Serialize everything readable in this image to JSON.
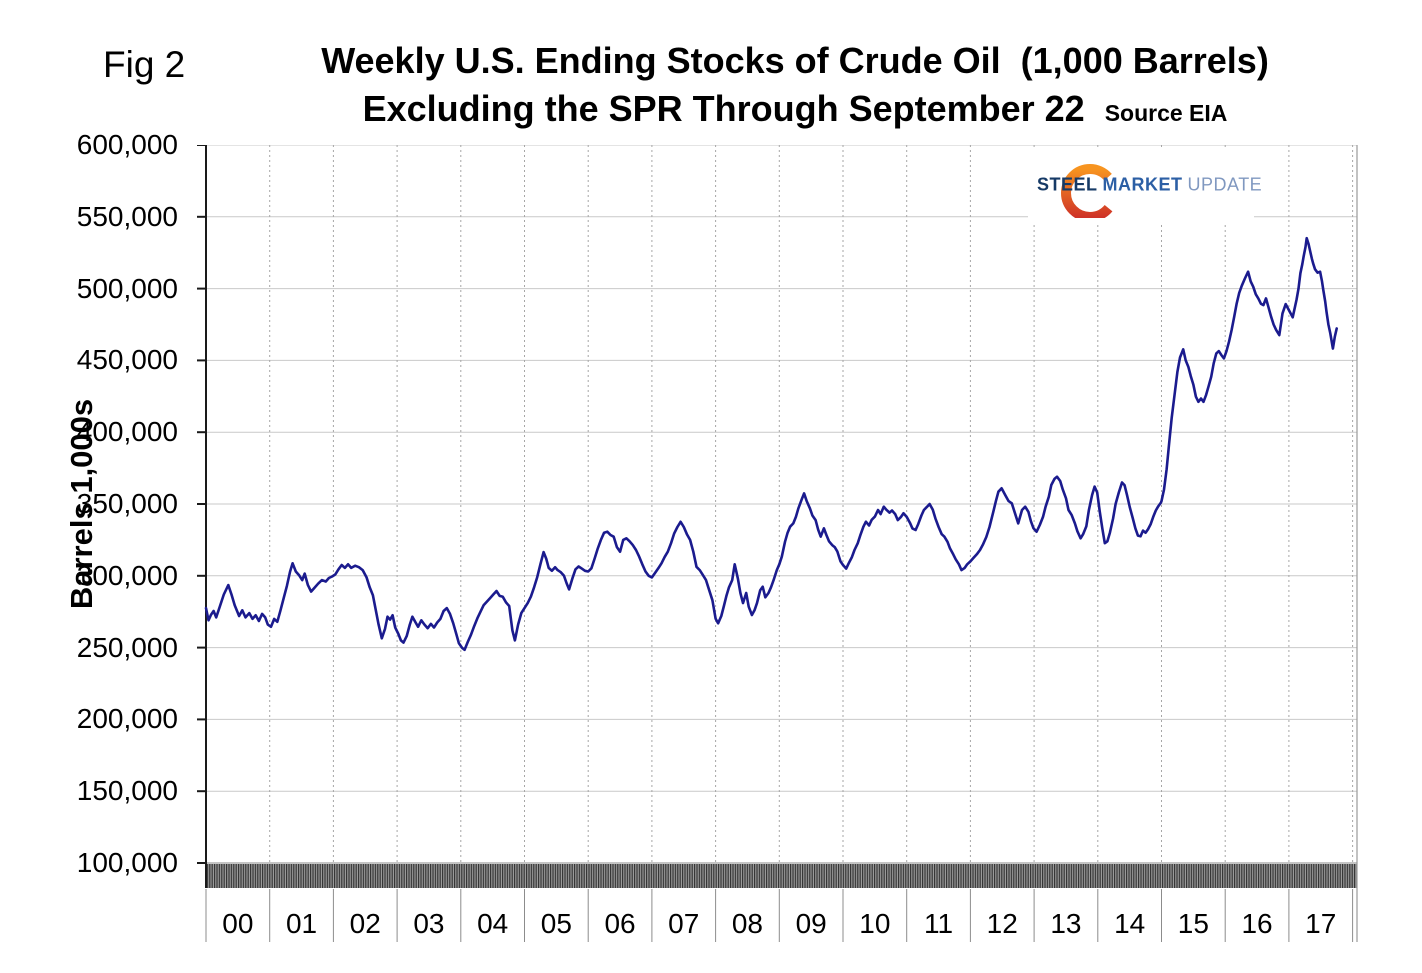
{
  "figure_label": "Fig 2",
  "title": {
    "line1": "Weekly U.S. Ending Stocks of Crude Oil  (1,000 Barrels)",
    "line2": "Excluding the SPR Through September 22",
    "source": "Source EIA"
  },
  "logo": {
    "steel": "STEEL",
    "market": "MARKET",
    "update": "UPDATE",
    "steel_color": "#163a66",
    "market_color": "#2c5fa5",
    "update_color": "#8098c0",
    "crescent_top_color": "#f79420",
    "crescent_bottom_color": "#cf3327"
  },
  "y_axis": {
    "title": "Barrels 1,000s",
    "min": 100000,
    "max": 600000,
    "step": 50000,
    "tick_labels": [
      "600,000",
      "550,000",
      "500,000",
      "450,000",
      "400,000",
      "350,000",
      "300,000",
      "250,000",
      "200,000",
      "150,000",
      "100,000"
    ]
  },
  "x_axis": {
    "year_labels": [
      "00",
      "01",
      "02",
      "03",
      "04",
      "05",
      "06",
      "07",
      "08",
      "09",
      "10",
      "11",
      "12",
      "13",
      "14",
      "15",
      "16",
      "17"
    ]
  },
  "chart_data": {
    "type": "line",
    "series_name": "Weekly U.S. ending stocks of crude oil excluding the SPR (1,000 barrels)",
    "line_color": "#1b1b8e",
    "x_unit": "decimal year (2000.0 = Jan 2000; data ends Sep 22, 2017)",
    "x_range": [
      2000,
      2018
    ],
    "ylim": [
      100000,
      600000
    ],
    "grid": {
      "horizontal": "solid light gray every 50,000",
      "vertical": "dotted light gray at each year boundary"
    },
    "axis_bottom_band": "dense weekly tick hatching between 100,000 line and year labels",
    "x": [
      2000.0,
      2000.04,
      2000.08,
      2000.12,
      2000.16,
      2000.22,
      2000.28,
      2000.35,
      2000.4,
      2000.45,
      2000.52,
      2000.57,
      2000.62,
      2000.68,
      2000.73,
      2000.78,
      2000.83,
      2000.88,
      2000.93,
      2000.97,
      2001.02,
      2001.07,
      2001.12,
      2001.17,
      2001.22,
      2001.27,
      2001.32,
      2001.36,
      2001.41,
      2001.46,
      2001.51,
      2001.55,
      2001.6,
      2001.65,
      2001.7,
      2001.76,
      2001.82,
      2001.88,
      2001.93,
      2001.98,
      2002.03,
      2002.08,
      2002.13,
      2002.18,
      2002.23,
      2002.28,
      2002.34,
      2002.4,
      2002.46,
      2002.52,
      2002.57,
      2002.62,
      2002.66,
      2002.71,
      2002.76,
      2002.81,
      2002.85,
      2002.89,
      2002.93,
      2002.97,
      2003.02,
      2003.06,
      2003.1,
      2003.15,
      2003.2,
      2003.24,
      2003.29,
      2003.33,
      2003.38,
      2003.43,
      2003.48,
      2003.53,
      2003.58,
      2003.63,
      2003.68,
      2003.73,
      2003.78,
      2003.83,
      2003.88,
      2003.93,
      2003.97,
      2004.02,
      2004.06,
      2004.11,
      2004.16,
      2004.21,
      2004.26,
      2004.31,
      2004.36,
      2004.41,
      2004.46,
      2004.51,
      2004.56,
      2004.61,
      2004.66,
      2004.71,
      2004.76,
      2004.81,
      2004.85,
      2004.9,
      2004.95,
      2005.0,
      2005.05,
      2005.1,
      2005.15,
      2005.2,
      2005.25,
      2005.3,
      2005.34,
      2005.38,
      2005.43,
      2005.48,
      2005.52,
      2005.57,
      2005.62,
      2005.66,
      2005.7,
      2005.75,
      2005.8,
      2005.85,
      2005.9,
      2005.95,
      2006.0,
      2006.05,
      2006.1,
      2006.15,
      2006.2,
      2006.25,
      2006.3,
      2006.35,
      2006.4,
      2006.45,
      2006.5,
      2006.55,
      2006.6,
      2006.65,
      2006.7,
      2006.75,
      2006.8,
      2006.85,
      2006.9,
      2006.95,
      2007.0,
      2007.05,
      2007.1,
      2007.15,
      2007.2,
      2007.25,
      2007.3,
      2007.35,
      2007.4,
      2007.45,
      2007.5,
      2007.55,
      2007.6,
      2007.65,
      2007.7,
      2007.75,
      2007.8,
      2007.85,
      2007.9,
      2007.95,
      2008.0,
      2008.04,
      2008.09,
      2008.13,
      2008.17,
      2008.21,
      2008.26,
      2008.3,
      2008.35,
      2008.39,
      2008.43,
      2008.48,
      2008.52,
      2008.57,
      2008.61,
      2008.65,
      2008.7,
      2008.74,
      2008.78,
      2008.83,
      2008.87,
      2008.91,
      2008.96,
      2009.0,
      2009.04,
      2009.09,
      2009.13,
      2009.17,
      2009.22,
      2009.26,
      2009.3,
      2009.35,
      2009.39,
      2009.43,
      2009.48,
      2009.52,
      2009.57,
      2009.61,
      2009.65,
      2009.7,
      2009.74,
      2009.78,
      2009.83,
      2009.87,
      2009.91,
      2009.96,
      2010.0,
      2010.05,
      2010.09,
      2010.14,
      2010.18,
      2010.23,
      2010.27,
      2010.32,
      2010.36,
      2010.41,
      2010.45,
      2010.5,
      2010.55,
      2010.59,
      2010.64,
      2010.68,
      2010.73,
      2010.77,
      2010.82,
      2010.86,
      2010.91,
      2010.95,
      2011.0,
      2011.05,
      2011.09,
      2011.14,
      2011.18,
      2011.23,
      2011.27,
      2011.32,
      2011.36,
      2011.41,
      2011.45,
      2011.5,
      2011.55,
      2011.59,
      2011.64,
      2011.68,
      2011.73,
      2011.77,
      2011.82,
      2011.86,
      2011.91,
      2011.95,
      2012.0,
      2012.05,
      2012.1,
      2012.15,
      2012.2,
      2012.25,
      2012.3,
      2012.36,
      2012.4,
      2012.44,
      2012.49,
      2012.55,
      2012.6,
      2012.65,
      2012.7,
      2012.75,
      2012.81,
      2012.86,
      2012.91,
      2012.95,
      2012.99,
      2013.04,
      2013.09,
      2013.14,
      2013.18,
      2013.23,
      2013.27,
      2013.32,
      2013.36,
      2013.41,
      2013.45,
      2013.5,
      2013.54,
      2013.59,
      2013.64,
      2013.68,
      2013.73,
      2013.77,
      2013.82,
      2013.86,
      2013.91,
      2013.95,
      2013.99,
      2014.03,
      2014.07,
      2014.11,
      2014.15,
      2014.19,
      2014.24,
      2014.28,
      2014.33,
      2014.38,
      2014.42,
      2014.46,
      2014.5,
      2014.55,
      2014.59,
      2014.63,
      2014.67,
      2014.71,
      2014.75,
      2014.79,
      2014.83,
      2014.87,
      2014.91,
      2014.95,
      2014.99,
      2015.0,
      2015.04,
      2015.08,
      2015.12,
      2015.16,
      2015.21,
      2015.25,
      2015.29,
      2015.34,
      2015.38,
      2015.42,
      2015.46,
      2015.5,
      2015.54,
      2015.58,
      2015.62,
      2015.66,
      2015.7,
      2015.74,
      2015.78,
      2015.82,
      2015.86,
      2015.9,
      2015.94,
      2015.98,
      2016.02,
      2016.06,
      2016.1,
      2016.14,
      2016.18,
      2016.22,
      2016.26,
      2016.31,
      2016.36,
      2016.4,
      2016.44,
      2016.48,
      2016.52,
      2016.56,
      2016.6,
      2016.64,
      2016.68,
      2016.72,
      2016.76,
      2016.8,
      2016.85,
      2016.9,
      2016.95,
      2017.0,
      2017.06,
      2017.12,
      2017.15,
      2017.18,
      2017.21,
      2017.23,
      2017.26,
      2017.28,
      2017.31,
      2017.33,
      2017.36,
      2017.38,
      2017.41,
      2017.45,
      2017.49,
      2017.52,
      2017.54,
      2017.57,
      2017.59,
      2017.62,
      2017.65,
      2017.69,
      2017.72,
      2017.75
    ],
    "values": [
      277500,
      269000,
      273000,
      275500,
      271000,
      279000,
      287000,
      293500,
      287000,
      279500,
      272000,
      276000,
      271000,
      274000,
      270000,
      272500,
      268500,
      273500,
      271000,
      266000,
      264500,
      270000,
      268000,
      276000,
      284500,
      293000,
      303000,
      308700,
      303000,
      300500,
      297000,
      301500,
      293500,
      289000,
      291500,
      294500,
      297000,
      296000,
      298500,
      299500,
      301000,
      304500,
      307500,
      305500,
      308000,
      305500,
      307000,
      306000,
      304000,
      299000,
      292000,
      286500,
      277500,
      266000,
      256500,
      263000,
      271500,
      269500,
      272500,
      264000,
      259500,
      255000,
      253500,
      258000,
      266000,
      271500,
      267500,
      264500,
      269000,
      266000,
      263500,
      266500,
      264000,
      267500,
      270000,
      275500,
      277500,
      273500,
      267000,
      259500,
      253000,
      249800,
      248500,
      254000,
      259000,
      265000,
      270500,
      275000,
      279600,
      282000,
      284500,
      287000,
      289400,
      286000,
      285400,
      281500,
      279000,
      262000,
      255000,
      266000,
      274000,
      277500,
      281000,
      285500,
      292000,
      299000,
      308000,
      316500,
      312000,
      305500,
      303500,
      306000,
      304000,
      302500,
      300000,
      295000,
      290500,
      298000,
      304500,
      306500,
      305000,
      303500,
      303000,
      305200,
      312000,
      319100,
      325000,
      330000,
      330700,
      328400,
      327200,
      320000,
      316800,
      325000,
      326100,
      324000,
      321400,
      318000,
      313300,
      308000,
      303000,
      300000,
      298900,
      302000,
      305200,
      308700,
      313000,
      316800,
      322600,
      329500,
      334000,
      337600,
      334000,
      329000,
      325000,
      316800,
      306300,
      304000,
      300500,
      297000,
      290000,
      283000,
      270200,
      266900,
      272000,
      279000,
      286000,
      292000,
      297000,
      308000,
      298000,
      288000,
      281000,
      288000,
      278500,
      272700,
      276000,
      281000,
      290000,
      292400,
      285000,
      288000,
      292000,
      297000,
      304000,
      308000,
      313300,
      323700,
      330000,
      334200,
      336500,
      341000,
      347000,
      353000,
      357400,
      352000,
      347000,
      342000,
      338800,
      332000,
      327300,
      333100,
      328400,
      324000,
      321400,
      320000,
      317000,
      310000,
      307500,
      305000,
      308700,
      313000,
      318000,
      322600,
      328000,
      334200,
      337700,
      335000,
      339000,
      341200,
      345800,
      343000,
      348100,
      346000,
      344000,
      345500,
      343000,
      338800,
      341000,
      343500,
      341000,
      337000,
      333000,
      331900,
      336000,
      342000,
      345800,
      348100,
      350000,
      346000,
      340000,
      334000,
      329000,
      327300,
      323700,
      319100,
      315000,
      311500,
      308000,
      304000,
      305500,
      308000,
      310000,
      312500,
      315000,
      318000,
      322000,
      327000,
      334000,
      344600,
      352000,
      358600,
      360900,
      356000,
      352000,
      350500,
      343500,
      336500,
      345800,
      348100,
      344600,
      338000,
      333100,
      330700,
      335400,
      341000,
      348100,
      355000,
      363200,
      367500,
      369000,
      366000,
      360000,
      354000,
      345800,
      342300,
      336500,
      331000,
      326100,
      329000,
      334400,
      345800,
      356300,
      362100,
      358000,
      345000,
      333100,
      322700,
      324000,
      330000,
      340000,
      350000,
      358000,
      365000,
      363000,
      356000,
      348000,
      340000,
      333000,
      328000,
      327500,
      331500,
      330000,
      332500,
      336000,
      341000,
      345500,
      348500,
      351000,
      352000,
      360000,
      374000,
      392000,
      410000,
      428000,
      442000,
      452000,
      457700,
      450000,
      445600,
      439000,
      433000,
      424700,
      421200,
      423500,
      421200,
      426000,
      432000,
      438600,
      448000,
      454900,
      456500,
      453700,
      451400,
      456500,
      463000,
      471100,
      480000,
      489700,
      497000,
      502000,
      507000,
      511800,
      505000,
      501300,
      496000,
      493200,
      489500,
      488500,
      493200,
      487000,
      480400,
      475000,
      471100,
      467600,
      482700,
      489200,
      485000,
      480000,
      492100,
      500000,
      510700,
      517000,
      522300,
      529000,
      535100,
      531000,
      526900,
      521000,
      517600,
      513500,
      511100,
      511800,
      505000,
      499000,
      491000,
      483900,
      475000,
      468800,
      458300,
      466400,
      472200
    ]
  }
}
